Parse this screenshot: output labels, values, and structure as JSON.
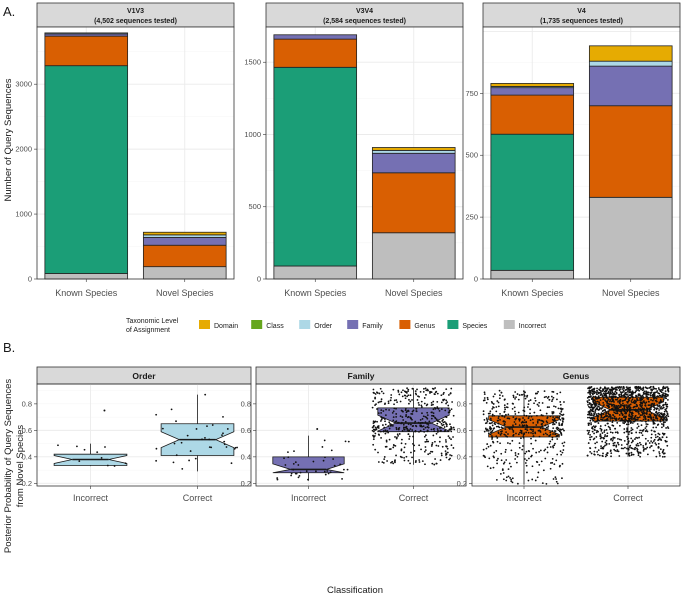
{
  "panel_labels": {
    "a": "A.",
    "b": "B."
  },
  "legend": {
    "title_line1": "Taxonomic Level",
    "title_line2": "of Assignment",
    "items": [
      {
        "label": "Domain",
        "color": "#E6AB02"
      },
      {
        "label": "Class",
        "color": "#66A61E"
      },
      {
        "label": "Order",
        "color": "#ADD8E6"
      },
      {
        "label": "Family",
        "color": "#7570B3"
      },
      {
        "label": "Genus",
        "color": "#D95F02"
      },
      {
        "label": "Species",
        "color": "#1B9E77"
      },
      {
        "label": "Incorrect",
        "color": "#BEBEBE"
      }
    ]
  },
  "chart_data": [
    {
      "type": "bar",
      "stacked": true,
      "ylabel": "Number of Query Sequences",
      "stack_order": [
        "Incorrect",
        "Species",
        "Genus",
        "Family",
        "Order",
        "Class",
        "Domain"
      ],
      "facets": [
        {
          "title": "V1V3",
          "subtitle": "(4,502 sequences tested)",
          "ylim": [
            0,
            3850
          ],
          "yticks": [
            0,
            1000,
            2000,
            3000
          ],
          "categories": [
            "Known Species",
            "Novel Species"
          ],
          "stacks": [
            {
              "Incorrect": 85,
              "Species": 3200,
              "Genus": 455,
              "Family": 35,
              "Order": 15,
              "Class": 0,
              "Domain": 0
            },
            {
              "Incorrect": 190,
              "Species": 0,
              "Genus": 330,
              "Family": 120,
              "Order": 40,
              "Class": 0,
              "Domain": 40
            }
          ]
        },
        {
          "title": "V3V4",
          "subtitle": "(2,584 sequences tested)",
          "ylim": [
            0,
            1730
          ],
          "yticks": [
            0,
            500,
            1000,
            1500
          ],
          "categories": [
            "Known Species",
            "Novel Species"
          ],
          "stacks": [
            {
              "Incorrect": 90,
              "Species": 1375,
              "Genus": 195,
              "Family": 30,
              "Order": 0,
              "Class": 0,
              "Domain": 0
            },
            {
              "Incorrect": 320,
              "Species": 0,
              "Genus": 415,
              "Family": 135,
              "Order": 20,
              "Class": 0,
              "Domain": 20
            }
          ]
        },
        {
          "title": "V4",
          "subtitle": "(1,735 sequences tested)",
          "ylim": [
            0,
            1010
          ],
          "yticks": [
            0,
            250,
            500,
            750
          ],
          "categories": [
            "Known Species",
            "Novel Species"
          ],
          "stacks": [
            {
              "Incorrect": 35,
              "Species": 550,
              "Genus": 158,
              "Family": 30,
              "Order": 5,
              "Class": 0,
              "Domain": 12
            },
            {
              "Incorrect": 330,
              "Species": 0,
              "Genus": 370,
              "Family": 160,
              "Order": 20,
              "Class": 0,
              "Domain": 62
            }
          ]
        }
      ]
    },
    {
      "type": "box",
      "xlabel": "Classification",
      "ylabel_line1": "Posterior Probability of Query Sequences",
      "ylabel_line2": "from Novel Species",
      "ylim": [
        0.18,
        0.95
      ],
      "yticks": [
        0.2,
        0.4,
        0.6,
        0.8
      ],
      "facets": [
        {
          "title": "Order",
          "color": "#ADD8E6",
          "groups": [
            {
              "label": "Incorrect",
              "n": 10,
              "whisker_low": 0.33,
              "q1": 0.335,
              "median": 0.38,
              "q3": 0.42,
              "whisker_high": 0.5,
              "outliers": [
                0.75
              ]
            },
            {
              "label": "Correct",
              "n": 35,
              "whisker_low": 0.29,
              "q1": 0.41,
              "median": 0.53,
              "q3": 0.65,
              "whisker_high": 0.87,
              "outliers": []
            }
          ]
        },
        {
          "title": "Family",
          "color": "#7570B3",
          "groups": [
            {
              "label": "Incorrect",
              "n": 40,
              "whisker_low": 0.22,
              "q1": 0.28,
              "median": 0.305,
              "q3": 0.4,
              "whisker_high": 0.56,
              "outliers": [
                0.61
              ]
            },
            {
              "label": "Correct",
              "n": 480,
              "whisker_low": 0.34,
              "q1": 0.59,
              "median": 0.655,
              "q3": 0.77,
              "whisker_high": 0.92,
              "outliers": []
            }
          ]
        },
        {
          "title": "Genus",
          "color": "#D95F02",
          "groups": [
            {
              "label": "Incorrect",
              "n": 520,
              "whisker_low": 0.19,
              "q1": 0.55,
              "median": 0.625,
              "q3": 0.71,
              "whisker_high": 0.9,
              "outliers": []
            },
            {
              "label": "Correct",
              "n": 1300,
              "whisker_low": 0.4,
              "q1": 0.67,
              "median": 0.755,
              "q3": 0.85,
              "whisker_high": 0.93,
              "outliers": []
            }
          ]
        }
      ]
    }
  ]
}
